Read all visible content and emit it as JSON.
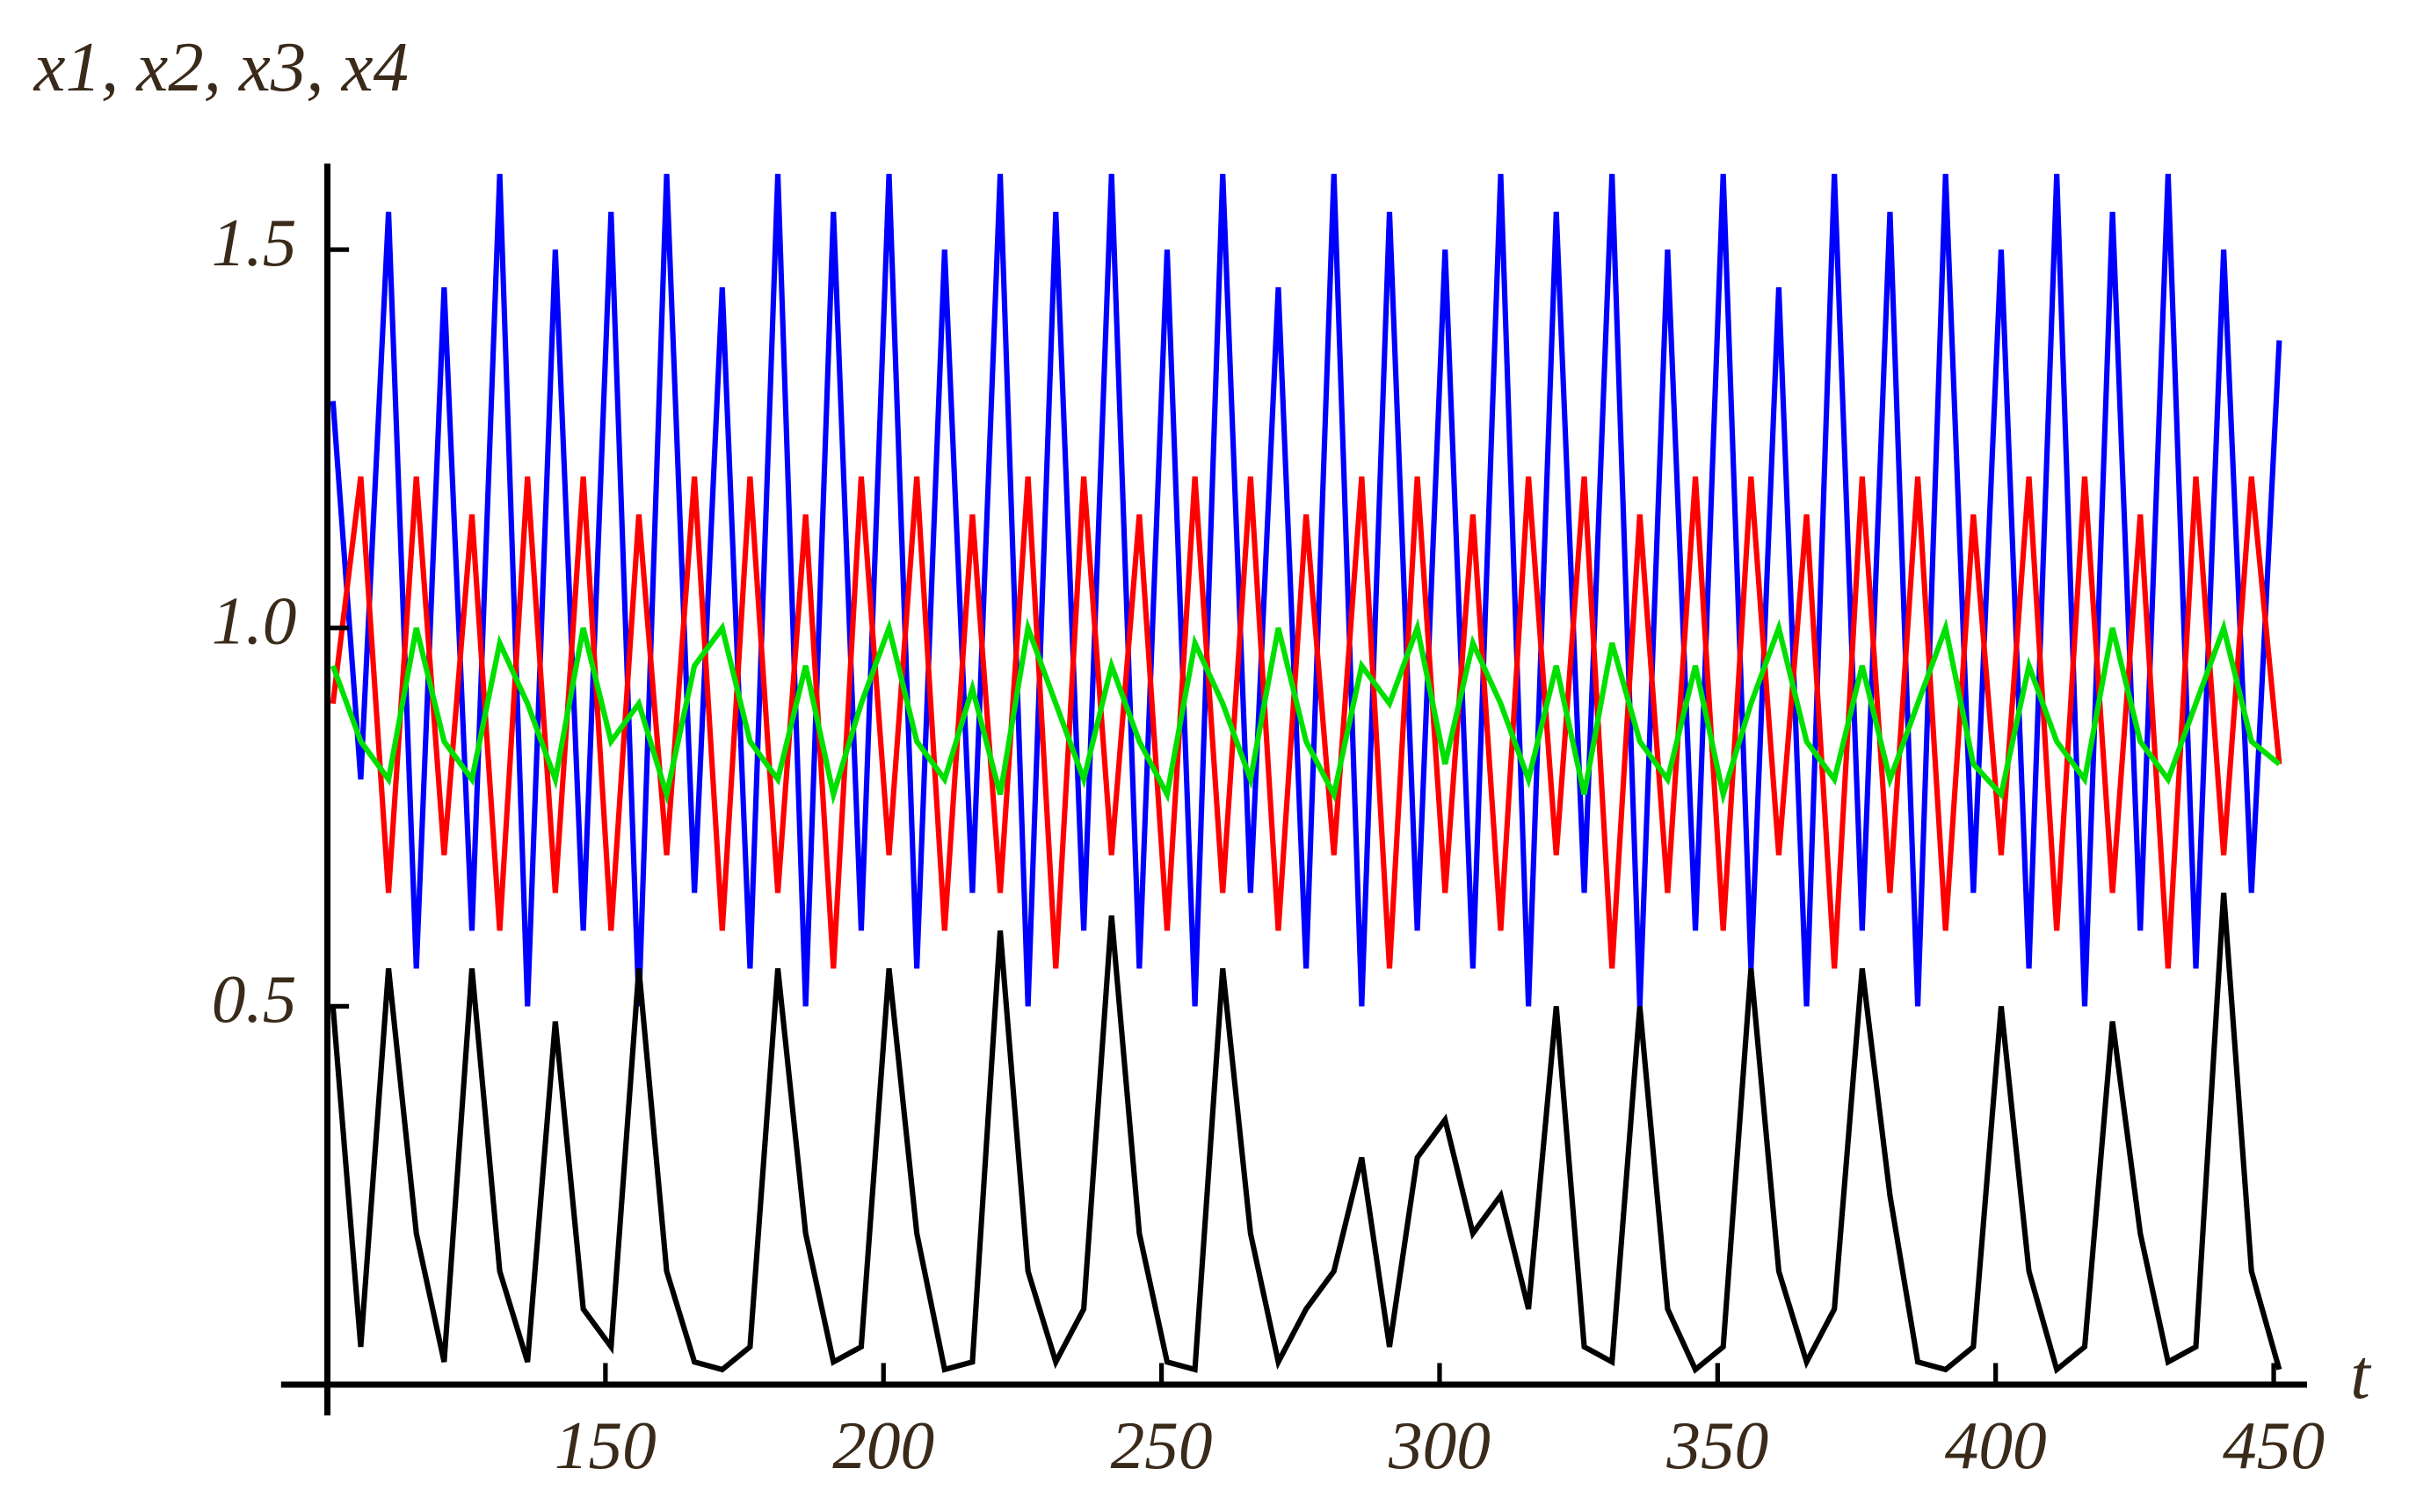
{
  "chart_data": {
    "type": "line",
    "ylabel": "x1, x2, x3, x4",
    "xlabel": "t",
    "x": [
      101,
      106,
      111,
      116,
      121,
      126,
      131,
      136,
      141,
      146,
      151,
      156,
      161,
      166,
      171,
      176,
      181,
      186,
      191,
      196,
      201,
      206,
      211,
      216,
      221,
      226,
      231,
      236,
      241,
      246,
      251,
      256,
      261,
      266,
      271,
      276,
      281,
      286,
      291,
      296,
      301,
      306,
      311,
      316,
      321,
      326,
      331,
      336,
      341,
      346,
      351,
      356,
      361,
      366,
      371,
      376,
      381,
      386,
      391,
      396,
      401,
      406,
      411,
      416,
      421,
      426,
      431,
      436,
      441,
      446,
      451
    ],
    "series": [
      {
        "color": "#0000ff",
        "values": [
          1.3,
          0.8,
          1.55,
          0.55,
          1.45,
          0.6,
          1.6,
          0.5,
          1.5,
          0.6,
          1.55,
          0.5,
          1.6,
          0.65,
          1.45,
          0.55,
          1.6,
          0.5,
          1.55,
          0.6,
          1.6,
          0.55,
          1.5,
          0.65,
          1.6,
          0.5,
          1.55,
          0.6,
          1.6,
          0.55,
          1.5,
          0.5,
          1.6,
          0.65,
          1.45,
          0.55,
          1.6,
          0.5,
          1.55,
          0.6,
          1.5,
          0.55,
          1.6,
          0.5,
          1.55,
          0.65,
          1.6,
          0.5,
          1.5,
          0.6,
          1.6,
          0.55,
          1.45,
          0.5,
          1.6,
          0.6,
          1.55,
          0.5,
          1.6,
          0.65,
          1.5,
          0.55,
          1.6,
          0.5,
          1.55,
          0.6,
          1.6,
          0.55,
          1.5,
          0.65,
          1.38
        ]
      },
      {
        "color": "#ff0000",
        "values": [
          0.9,
          1.2,
          0.65,
          1.2,
          0.7,
          1.15,
          0.6,
          1.2,
          0.65,
          1.2,
          0.6,
          1.15,
          0.7,
          1.2,
          0.6,
          1.2,
          0.65,
          1.15,
          0.55,
          1.2,
          0.7,
          1.2,
          0.6,
          1.15,
          0.65,
          1.2,
          0.55,
          1.2,
          0.7,
          1.15,
          0.6,
          1.2,
          0.65,
          1.2,
          0.6,
          1.15,
          0.7,
          1.2,
          0.55,
          1.2,
          0.65,
          1.15,
          0.6,
          1.2,
          0.7,
          1.2,
          0.55,
          1.15,
          0.65,
          1.2,
          0.6,
          1.2,
          0.7,
          1.15,
          0.55,
          1.2,
          0.65,
          1.2,
          0.6,
          1.15,
          0.7,
          1.2,
          0.6,
          1.2,
          0.65,
          1.15,
          0.55,
          1.2,
          0.7,
          1.2,
          0.82
        ]
      },
      {
        "color": "#00e000",
        "values": [
          0.95,
          0.85,
          0.8,
          1.0,
          0.85,
          0.8,
          0.98,
          0.9,
          0.8,
          1.0,
          0.85,
          0.9,
          0.78,
          0.95,
          1.0,
          0.85,
          0.8,
          0.95,
          0.78,
          0.9,
          1.0,
          0.85,
          0.8,
          0.92,
          0.78,
          1.0,
          0.9,
          0.8,
          0.95,
          0.85,
          0.78,
          0.98,
          0.9,
          0.8,
          1.0,
          0.85,
          0.78,
          0.95,
          0.9,
          1.0,
          0.82,
          0.98,
          0.9,
          0.8,
          0.95,
          0.78,
          0.98,
          0.85,
          0.8,
          0.95,
          0.78,
          0.9,
          1.0,
          0.85,
          0.8,
          0.95,
          0.8,
          0.9,
          1.0,
          0.82,
          0.78,
          0.95,
          0.85,
          0.8,
          1.0,
          0.85,
          0.8,
          0.9,
          1.0,
          0.85,
          0.82
        ]
      },
      {
        "color": "#000000",
        "values": [
          0.5,
          0.05,
          0.55,
          0.2,
          0.03,
          0.55,
          0.15,
          0.03,
          0.48,
          0.1,
          0.05,
          0.55,
          0.15,
          0.03,
          0.02,
          0.05,
          0.55,
          0.2,
          0.03,
          0.05,
          0.55,
          0.2,
          0.02,
          0.03,
          0.6,
          0.15,
          0.03,
          0.1,
          0.62,
          0.2,
          0.03,
          0.02,
          0.55,
          0.2,
          0.03,
          0.1,
          0.15,
          0.3,
          0.05,
          0.3,
          0.35,
          0.2,
          0.25,
          0.1,
          0.5,
          0.05,
          0.03,
          0.5,
          0.1,
          0.02,
          0.05,
          0.55,
          0.15,
          0.03,
          0.1,
          0.55,
          0.25,
          0.03,
          0.02,
          0.05,
          0.5,
          0.15,
          0.02,
          0.05,
          0.48,
          0.2,
          0.03,
          0.05,
          0.65,
          0.15,
          0.02
        ]
      }
    ],
    "xlim": [
      100,
      456
    ],
    "ylim": [
      0,
      1.63
    ],
    "xticks": [
      150,
      200,
      250,
      300,
      350,
      400,
      450
    ],
    "yticks": [
      0.5,
      {
        "value": 1,
        "label": "1.0"
      },
      1.5
    ]
  }
}
